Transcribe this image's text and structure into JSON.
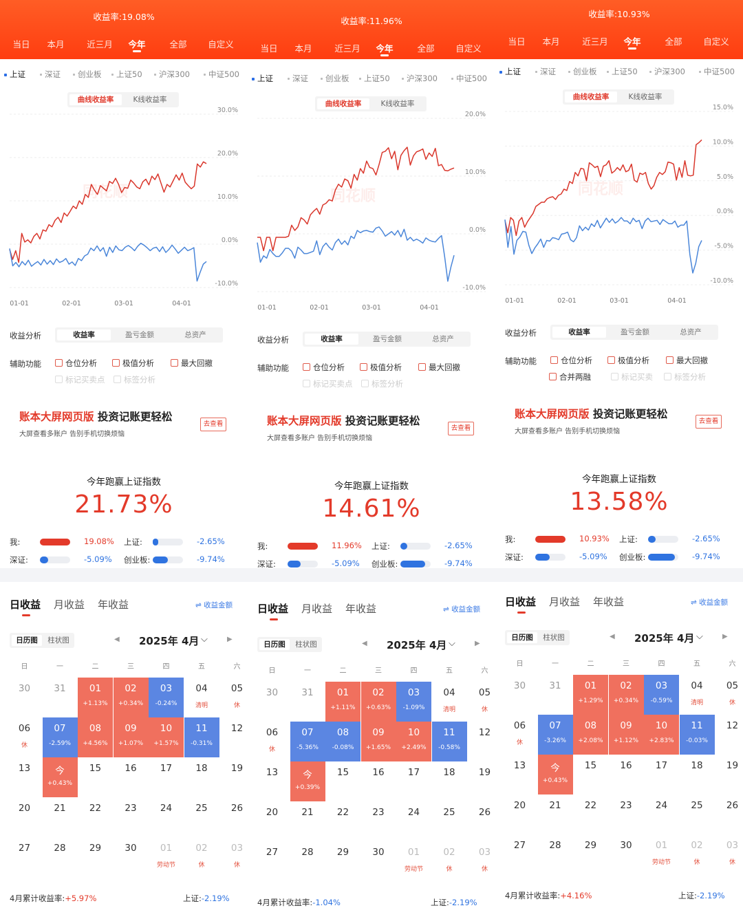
{
  "colors": {
    "accent": "#ff4a1a",
    "gain": "#e33a2a",
    "loss": "#2f73e0",
    "user_line": "#d9362b",
    "index_line": "#4a86d9"
  },
  "tabs": [
    "当日",
    "本月",
    "近三月",
    "今年",
    "全部",
    "自定义"
  ],
  "indices": [
    "上证",
    "深证",
    "创业板",
    "上证50",
    "沪深300",
    "中证500"
  ],
  "chart_modes": [
    "曲线收益率",
    "K线收益率"
  ],
  "watermark": "同花顺",
  "analysis_label": "收益分析",
  "analysis_tabs": [
    "收益率",
    "盈亏金额",
    "总资产"
  ],
  "aux_label": "辅助功能",
  "promo": {
    "title_red": "账本大屏网页版",
    "title_black": " 投资记账更轻松",
    "sub": "大屏查看多账户 告别手机切换烦恼",
    "btn": "去查看"
  },
  "beat_title": "今年跑赢上证指数",
  "cmp_labels": {
    "me": "我:",
    "sh": "上证:",
    "sz": "深证:",
    "cyb": "创业板:"
  },
  "period_tabs": [
    "日收益",
    "月收益",
    "年收益"
  ],
  "amount_link": "⇌ 收益金额",
  "view_tabs": [
    "日历图",
    "柱状图"
  ],
  "weekdays": [
    "日",
    "一",
    "二",
    "三",
    "四",
    "五",
    "六"
  ],
  "foot_sh_label": "上证:",
  "panels": [
    {
      "header_rate": "收益率:19.08%",
      "chart_data": {
        "type": "line",
        "x_ticks": [
          "01-01",
          "02-01",
          "03-01",
          "04-01"
        ],
        "y_ticks": [
          "30.0%",
          "20.0%",
          "10.0%",
          "0.0%",
          "-10.0%"
        ],
        "ylim": [
          -10,
          30
        ],
        "series": [
          {
            "values": [
              -1.2,
              -3.5,
              -1.5,
              -4.2,
              2.5,
              0.5,
              1,
              0.3,
              1.8,
              2.5,
              1.2,
              3.3,
              3,
              4.5,
              4,
              5.5,
              6.2,
              5,
              7.2,
              6.5,
              7.6,
              8.8,
              8.2,
              10,
              9.2,
              11.5,
              10.8,
              13.8,
              12.5,
              11.5,
              13.5,
              12.9,
              12.3,
              14.5,
              14,
              15.2,
              13.8,
              11.9,
              13.1,
              12.9,
              14.8,
              14.1,
              13.2,
              12.8,
              14.4,
              15,
              13.7,
              15.7,
              14.9,
              16.2,
              14.1,
              12,
              13.8,
              13.2,
              14.6,
              16,
              14.8,
              16.4,
              14.3,
              13.5,
              12.8,
              13.4,
              18.5,
              17.8,
              19,
              18.6
            ]
          },
          {
            "values": [
              -1,
              -5,
              -4.2,
              -5.2,
              -4,
              -4.8,
              -3.7,
              -5.1,
              -4.5,
              -4,
              -4.8,
              -3.5,
              -4.6,
              -3.8,
              -4.7,
              -3.4,
              -4.2,
              -3.9,
              -3.3,
              -4.6,
              -4.1,
              -4.9,
              -3.3,
              -3.8,
              -2.7,
              -2.3,
              -0.9,
              -1.5,
              -0.4,
              -1.6,
              -0.8,
              -2.8,
              -0.7,
              -1.9,
              -0.4,
              -1.3,
              -1.5,
              -0.7,
              -0.3,
              -0.8,
              -1.5,
              -0.5,
              0.2,
              -0.2,
              -0.8,
              -1.5,
              -0.9,
              -0.7,
              -1.7,
              -0.6,
              -1.9,
              -1.2,
              -0.2,
              -1.1,
              -2.1,
              -1.4,
              -0.7,
              -1.5,
              -1.2,
              -0.8,
              -8.5,
              -6.5,
              -4.6,
              -4.0
            ]
          }
        ]
      },
      "analysis_row2": [
        "标记买卖点",
        "标签分析"
      ],
      "aux_row1": [
        "仓位分析",
        "极值分析",
        "最大回撤"
      ],
      "beat_value": "21.73%",
      "cmp": {
        "me": "19.08%",
        "sh": "-2.65%",
        "sz": "-5.09%",
        "cyb": "-9.74%"
      },
      "cmp_levels": {
        "me": 1.0,
        "sh": 0.14,
        "sz": 0.27,
        "cyb": 0.51
      },
      "month": "2025年 4月",
      "calendar": [
        [
          {
            "d": "30"
          },
          {
            "d": "31"
          },
          {
            "d": "01",
            "s": "+1.13%",
            "c": "red"
          },
          {
            "d": "02",
            "s": "+0.34%",
            "c": "red"
          },
          {
            "d": "03",
            "s": "-0.24%",
            "c": "blue"
          },
          {
            "d": "04",
            "s": "清明"
          },
          {
            "d": "05",
            "s": "休"
          }
        ],
        [
          {
            "d": "06",
            "s": "休"
          },
          {
            "d": "07",
            "s": "-2.59%",
            "c": "blue"
          },
          {
            "d": "08",
            "s": "+4.56%",
            "c": "red"
          },
          {
            "d": "09",
            "s": "+1.07%",
            "c": "red"
          },
          {
            "d": "10",
            "s": "+1.57%",
            "c": "red"
          },
          {
            "d": "11",
            "s": "-0.31%",
            "c": "blue"
          },
          {
            "d": "12"
          }
        ],
        [
          {
            "d": "13"
          },
          {
            "d": "今",
            "s": "+0.43%",
            "c": "red"
          },
          {
            "d": "15"
          },
          {
            "d": "16"
          },
          {
            "d": "17"
          },
          {
            "d": "18"
          },
          {
            "d": "19"
          }
        ],
        [
          {
            "d": "20"
          },
          {
            "d": "21"
          },
          {
            "d": "22"
          },
          {
            "d": "23"
          },
          {
            "d": "24"
          },
          {
            "d": "25"
          },
          {
            "d": "26"
          }
        ],
        [
          {
            "d": "27"
          },
          {
            "d": "28"
          },
          {
            "d": "29"
          },
          {
            "d": "30"
          },
          {
            "d": "01",
            "s": "劳动节",
            "dim": true
          },
          {
            "d": "02",
            "s": "休",
            "dim": true
          },
          {
            "d": "03",
            "s": "休",
            "dim": true
          }
        ]
      ],
      "foot_label": "4月累计收益率:",
      "foot_value": "+5.97%",
      "foot_sh": "-2.19%"
    },
    {
      "header_rate": "收益率:11.96%",
      "chart_data": {
        "type": "line",
        "x_ticks": [
          "01-01",
          "02-01",
          "03-01",
          "04-01"
        ],
        "y_ticks": [
          "20.0%",
          "10.0%",
          "0.0%",
          "-10.0%"
        ],
        "ylim": [
          -10,
          20
        ],
        "series": [
          {
            "values": [
              -0.6,
              -0.6,
              -2.9,
              -0.6,
              -0.6,
              -2.9,
              -0.6,
              -0.6,
              -0.6,
              -0.6,
              -0.4,
              1.5,
              0.6,
              1.2,
              2.8,
              2.4,
              1.7,
              3.3,
              3.9,
              4.4,
              3.4,
              5,
              5.3,
              5.9,
              5.7,
              7.6,
              8.6,
              8.1,
              9.5,
              9.2,
              7.9,
              10.3,
              9.3,
              11.3,
              10.5,
              12.6,
              11.5,
              11.3,
              10.2,
              12,
              14.1,
              14.3,
              14.9,
              13,
              14.3,
              11.1,
              13.6,
              14.4,
              15,
              11.9,
              13.5,
              14.2,
              14.4,
              14.7,
              12.9,
              14,
              13.4,
              14.8,
              11.8,
              12,
              11,
              10.9,
              11.2,
              11.4
            ]
          },
          {
            "values": [
              -1.5,
              -4.9,
              -3.8,
              -4.2,
              -2.7,
              -3.4,
              -3.9,
              -3.9,
              -3.3,
              -2.5,
              -2.5,
              -3,
              -4.2,
              -2.3,
              -2.8,
              -3.4,
              -3.4,
              -3.2,
              -3,
              -1.2,
              -3.6,
              -2.2,
              -1.6,
              -2.3,
              -2.8,
              -1.5,
              -0.9,
              -1.8,
              -1.2,
              -1.9,
              -0.4,
              -0.8,
              0.6,
              0.2,
              0.5,
              0.6,
              0.4,
              0.3,
              1,
              1.2,
              0.5,
              -0.4,
              0,
              0.4,
              -0.2,
              0.6,
              -0.5,
              0.8,
              -1.1,
              -0.6,
              -1.2,
              -0.9,
              -1.2,
              -1.6,
              -0.7,
              -1.1,
              -1.3,
              -1.4,
              -0.8,
              -0.3,
              -4,
              -8.2,
              -5.7,
              -3.7
            ]
          }
        ]
      },
      "analysis_row2": [
        "标记买卖点",
        "标签分析"
      ],
      "aux_row1": [
        "仓位分析",
        "极值分析",
        "最大回撤"
      ],
      "beat_value": "14.61%",
      "cmp": {
        "me": "11.96%",
        "sh": "-2.65%",
        "sz": "-5.09%",
        "cyb": "-9.74%"
      },
      "cmp_levels": {
        "me": 1.0,
        "sh": 0.22,
        "sz": 0.43,
        "cyb": 0.81
      },
      "month": "2025年 4月",
      "calendar": [
        [
          {
            "d": "30"
          },
          {
            "d": "31"
          },
          {
            "d": "01",
            "s": "+1.11%",
            "c": "red"
          },
          {
            "d": "02",
            "s": "+0.63%",
            "c": "red"
          },
          {
            "d": "03",
            "s": "-1.09%",
            "c": "blue"
          },
          {
            "d": "04",
            "s": "清明"
          },
          {
            "d": "05",
            "s": "休"
          }
        ],
        [
          {
            "d": "06",
            "s": "休"
          },
          {
            "d": "07",
            "s": "-5.36%",
            "c": "blue"
          },
          {
            "d": "08",
            "s": "-0.08%",
            "c": "blue"
          },
          {
            "d": "09",
            "s": "+1.65%",
            "c": "red"
          },
          {
            "d": "10",
            "s": "+2.49%",
            "c": "red"
          },
          {
            "d": "11",
            "s": "-0.58%",
            "c": "blue"
          },
          {
            "d": "12"
          }
        ],
        [
          {
            "d": "13"
          },
          {
            "d": "今",
            "s": "+0.39%",
            "c": "red"
          },
          {
            "d": "15"
          },
          {
            "d": "16"
          },
          {
            "d": "17"
          },
          {
            "d": "18"
          },
          {
            "d": "19"
          }
        ],
        [
          {
            "d": "20"
          },
          {
            "d": "21"
          },
          {
            "d": "22"
          },
          {
            "d": "23"
          },
          {
            "d": "24"
          },
          {
            "d": "25"
          },
          {
            "d": "26"
          }
        ],
        [
          {
            "d": "27"
          },
          {
            "d": "28"
          },
          {
            "d": "29"
          },
          {
            "d": "30"
          },
          {
            "d": "01",
            "s": "劳动节",
            "dim": true
          },
          {
            "d": "02",
            "s": "休",
            "dim": true
          },
          {
            "d": "03",
            "s": "休",
            "dim": true
          }
        ]
      ],
      "foot_label": "4月累计收益率:",
      "foot_value": "-1.04%",
      "foot_sh": "-2.19%"
    },
    {
      "header_rate": "收益率:10.93%",
      "chart_data": {
        "type": "line",
        "x_ticks": [
          "01-01",
          "02-01",
          "03-01",
          "04-01"
        ],
        "y_ticks": [
          "15.0%",
          "10.0%",
          "5.0%",
          "0.0%",
          "-5.0%",
          "-10.0%"
        ],
        "ylim": [
          -10,
          15
        ],
        "series": [
          {
            "values": [
              -0.7,
              -2.5,
              -0.3,
              -0.7,
              -2.9,
              -0.8,
              -0.3,
              -1.7,
              -0.9,
              -0.3,
              0.3,
              1.3,
              1.6,
              1.9,
              1.9,
              2.4,
              2.6,
              2.7,
              2.3,
              2.9,
              3.1,
              3.8,
              3.6,
              4.9,
              4.6,
              6.2,
              5.7,
              6.8,
              6.7,
              5,
              7.6,
              7.3,
              6.9,
              7.1,
              5.6,
              7.1,
              7.3,
              7.9,
              6.1,
              6.4,
              6.9,
              6.5,
              7.3,
              6.3,
              6.5,
              7.4,
              5.1,
              4.8,
              6.1,
              5.9,
              6.2,
              4.6,
              3.8,
              4.3,
              5.5,
              6.2,
              5.9,
              6.3,
              7.7,
              7.6,
              7.4,
              5.1,
              6.9,
              5.5,
              7.9,
              5.8,
              5.7,
              5.8,
              10.2,
              10.5,
              10.9
            ]
          },
          {
            "values": [
              -0.6,
              -4.6,
              -1.6,
              -5.6,
              -3.6,
              -3.1,
              -2.3,
              -2.4,
              -4.3,
              -5.5,
              -4.7,
              -4.1,
              -3.4,
              -4.6,
              -3.6,
              -3.7,
              -3.2,
              -3.3,
              -3.5,
              -2.7,
              -2.6,
              -2.4,
              -3.5,
              -3.8,
              -3.2,
              -1.5,
              -2.2,
              -1.7,
              -2.1,
              -1.2,
              -1.6,
              -0.7,
              -1.8,
              -1.1,
              -0.4,
              -1,
              -0.5,
              -1.1,
              -0.8,
              -0.3,
              -0.8,
              -0.8,
              -1.2,
              -0.4,
              -0.9,
              -0.7,
              -1.9,
              -0.8,
              -0.4,
              -0.9,
              -0.8,
              -0.7,
              -1.3,
              -0.6,
              -0.9,
              -1.2,
              -1.2,
              -0.8,
              -1.7,
              -1.4,
              -1.4,
              -0.8,
              -5.6,
              -8.3,
              -6.9,
              -4.5,
              -3.6
            ]
          }
        ]
      },
      "analysis_row2": [
        "合并两融",
        "标记买卖",
        "标签分析"
      ],
      "aux_row1": [
        "仓位分析",
        "极值分析",
        "最大回撤"
      ],
      "beat_value": "13.58%",
      "cmp": {
        "me": "10.93%",
        "sh": "-2.65%",
        "sz": "-5.09%",
        "cyb": "-9.74%"
      },
      "cmp_levels": {
        "me": 1.0,
        "sh": 0.24,
        "sz": 0.47,
        "cyb": 0.89
      },
      "month": "2025年 4月",
      "calendar": [
        [
          {
            "d": "30"
          },
          {
            "d": "31"
          },
          {
            "d": "01",
            "s": "+1.29%",
            "c": "red"
          },
          {
            "d": "02",
            "s": "+0.34%",
            "c": "red"
          },
          {
            "d": "03",
            "s": "-0.59%",
            "c": "blue"
          },
          {
            "d": "04",
            "s": "清明"
          },
          {
            "d": "05",
            "s": "休"
          }
        ],
        [
          {
            "d": "06",
            "s": "休"
          },
          {
            "d": "07",
            "s": "-3.26%",
            "c": "blue"
          },
          {
            "d": "08",
            "s": "+2.08%",
            "c": "red"
          },
          {
            "d": "09",
            "s": "+1.12%",
            "c": "red"
          },
          {
            "d": "10",
            "s": "+2.83%",
            "c": "red"
          },
          {
            "d": "11",
            "s": "-0.03%",
            "c": "blue"
          },
          {
            "d": "12"
          }
        ],
        [
          {
            "d": "13"
          },
          {
            "d": "今",
            "s": "+0.43%",
            "c": "red"
          },
          {
            "d": "15"
          },
          {
            "d": "16"
          },
          {
            "d": "17"
          },
          {
            "d": "18"
          },
          {
            "d": "19"
          }
        ],
        [
          {
            "d": "20"
          },
          {
            "d": "21"
          },
          {
            "d": "22"
          },
          {
            "d": "23"
          },
          {
            "d": "24"
          },
          {
            "d": "25"
          },
          {
            "d": "26"
          }
        ],
        [
          {
            "d": "27"
          },
          {
            "d": "28"
          },
          {
            "d": "29"
          },
          {
            "d": "30"
          },
          {
            "d": "01",
            "s": "劳动节",
            "dim": true
          },
          {
            "d": "02",
            "s": "休",
            "dim": true
          },
          {
            "d": "03",
            "s": "休",
            "dim": true
          }
        ]
      ],
      "foot_label": "4月累计收益率:",
      "foot_value": "+4.16%",
      "foot_sh": "-2.19%"
    }
  ]
}
